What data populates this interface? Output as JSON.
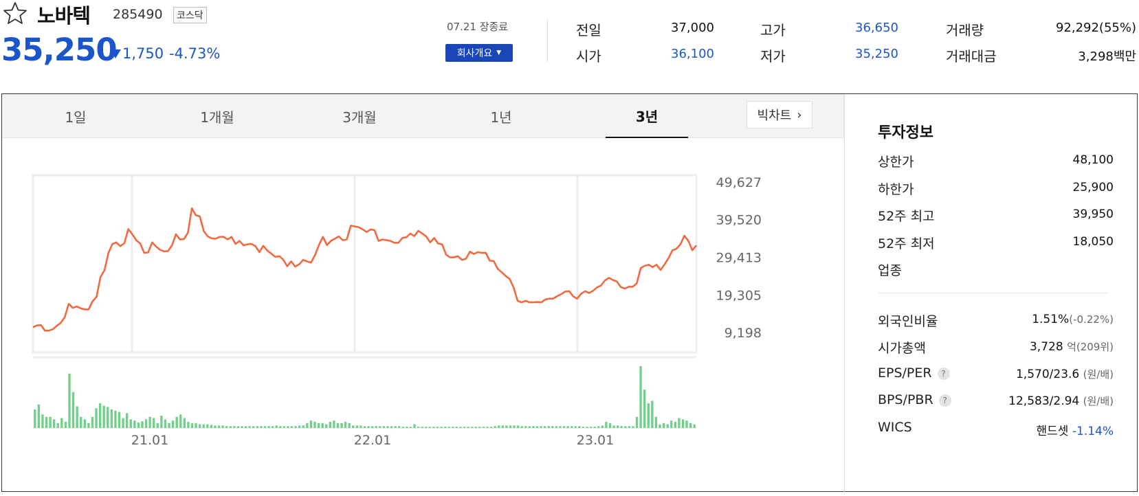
{
  "header": {
    "stock_name": "노바텍",
    "stock_code": "285490",
    "market": "코스닥",
    "price": "35,250",
    "change_amount": "1,750",
    "change_percent": "-4.73%",
    "trade_date": "07.21 장종료",
    "company_button": "회사개요",
    "star_icon": "star-outline-icon",
    "down_icon": "triangle-down-icon"
  },
  "quote": {
    "prev_close_label": "전일",
    "prev_close": "37,000",
    "open_label": "시가",
    "open": "36,100",
    "high_label": "고가",
    "high": "36,650",
    "low_label": "저가",
    "low": "35,250",
    "volume_label": "거래량",
    "volume": "92,292(55%)",
    "amount_label": "거래대금",
    "amount": "3,298백만"
  },
  "tabs": [
    {
      "label": "1일",
      "active": false
    },
    {
      "label": "1개월",
      "active": false
    },
    {
      "label": "3개월",
      "active": false
    },
    {
      "label": "1년",
      "active": false
    },
    {
      "label": "3년",
      "active": true
    }
  ],
  "big_chart_label": "빅차트",
  "chart_data": {
    "type": "line",
    "price_line_color": "#f2683f",
    "volume_bar_color": "#6fd08a",
    "y_ticks": [
      "49,627",
      "39,520",
      "29,413",
      "19,305",
      "9,198"
    ],
    "y_tick_values": [
      49627,
      39520,
      29413,
      19305,
      9198
    ],
    "x_ticks": [
      "21.01",
      "22.01",
      "23.01"
    ],
    "price": [
      10600,
      11100,
      11200,
      9700,
      9700,
      10100,
      11000,
      11800,
      13300,
      16900,
      15800,
      16200,
      15700,
      15400,
      15400,
      17600,
      18800,
      24100,
      25900,
      30600,
      33000,
      33400,
      32400,
      33200,
      37000,
      35600,
      34000,
      33100,
      30600,
      30700,
      33400,
      32300,
      31400,
      31000,
      31100,
      32600,
      35600,
      34200,
      34300,
      36000,
      42600,
      40700,
      40400,
      36400,
      35000,
      34500,
      34400,
      34900,
      34900,
      34200,
      34900,
      33000,
      33800,
      32600,
      32900,
      33000,
      32400,
      30800,
      32500,
      31200,
      30400,
      29500,
      29700,
      28800,
      27000,
      28300,
      26900,
      27500,
      28700,
      28300,
      28000,
      30000,
      32700,
      34900,
      32700,
      33800,
      34400,
      35000,
      34000,
      34200,
      37900,
      37700,
      37500,
      36900,
      36200,
      36900,
      36700,
      33800,
      34200,
      34000,
      33800,
      33300,
      33300,
      34600,
      34800,
      35800,
      35100,
      36500,
      35800,
      35000,
      33400,
      34600,
      33100,
      32900,
      30100,
      29400,
      29400,
      29700,
      28700,
      29000,
      30900,
      30300,
      30800,
      30600,
      30600,
      28500,
      28400,
      26300,
      25400,
      24400,
      23600,
      21300,
      17700,
      17300,
      17700,
      17300,
      17300,
      17400,
      17300,
      18100,
      18300,
      18300,
      19000,
      19500,
      20200,
      20300,
      18900,
      18300,
      19600,
      20300,
      19800,
      20400,
      21300,
      21800,
      23200,
      23900,
      23300,
      22900,
      21400,
      21000,
      21500,
      21500,
      22400,
      26500,
      27100,
      27400,
      26800,
      27400,
      26000,
      27500,
      29200,
      31300,
      31700,
      32900,
      35200,
      33800,
      31300,
      32600
    ],
    "volume": [
      30,
      38,
      22,
      18,
      18,
      14,
      8,
      16,
      10,
      88,
      58,
      35,
      18,
      14,
      8,
      18,
      32,
      40,
      36,
      34,
      30,
      28,
      26,
      16,
      24,
      14,
      12,
      9,
      11,
      14,
      18,
      16,
      8,
      20,
      14,
      8,
      12,
      18,
      22,
      16,
      10,
      8,
      8,
      6,
      6,
      6,
      5,
      4,
      4,
      4,
      3,
      3,
      3,
      3,
      3,
      3,
      3,
      3,
      3,
      3,
      3,
      3,
      3,
      4,
      3,
      3,
      3,
      3,
      3,
      4,
      4,
      8,
      12,
      10,
      8,
      8,
      6,
      10,
      12,
      8,
      8,
      10,
      8,
      4,
      4,
      4,
      3,
      3,
      3,
      3,
      3,
      3,
      3,
      3,
      3,
      3,
      2,
      2,
      2,
      6,
      2,
      2,
      2,
      2,
      2,
      2,
      2,
      2,
      2,
      2,
      2,
      2,
      2,
      2,
      2,
      2,
      2,
      2,
      2,
      2,
      3,
      4,
      4,
      4,
      4,
      4,
      4,
      3,
      3,
      3,
      3,
      3,
      3,
      3,
      3,
      3,
      3,
      3,
      3,
      3,
      3,
      3,
      3,
      2,
      2,
      2,
      2,
      3,
      4,
      10,
      8,
      4,
      4,
      3,
      3,
      3,
      3,
      18,
      100,
      62,
      40,
      44,
      18,
      6,
      8,
      6,
      12,
      10,
      16,
      14,
      12,
      8,
      6
    ]
  },
  "info": {
    "title": "투자정보",
    "upper_limit_label": "상한가",
    "upper_limit": "48,100",
    "lower_limit_label": "하한가",
    "lower_limit": "25,900",
    "high52_label": "52주 최고",
    "high52": "39,950",
    "low52_label": "52주 최저",
    "low52": "18,050",
    "industry_label": "업종",
    "foreign_label": "외국인비율",
    "foreign": "1.51%",
    "foreign_change": "(-0.22%)",
    "market_cap_label": "시가총액",
    "market_cap": "3,728",
    "market_cap_unit": "억(209위)",
    "eps_per_label": "EPS/PER",
    "eps_per": "1,570/23.6",
    "eps_per_unit": "(원/배)",
    "bps_pbr_label": "BPS/PBR",
    "bps_pbr": "12,583/2.94",
    "bps_pbr_unit": "(원/배)",
    "wics_label": "WICS",
    "wics_sector": "핸드셋",
    "wics_change": "-1.14%",
    "help_glyph": "?"
  }
}
